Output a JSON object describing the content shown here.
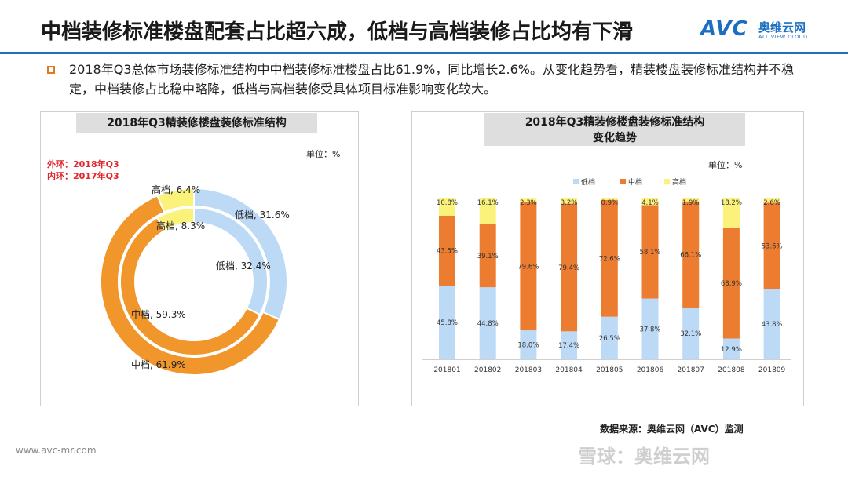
{
  "header": {
    "title": "中档装修标准楼盘配套占比超六成，低档与高档装修占比均有下滑",
    "logo_mark": "AVC",
    "logo_cn": "奥维云网",
    "logo_en": "ALL VIEW CLOUD"
  },
  "description": "2018年Q3总体市场装修标准结构中中档装修标准楼盘占比61.9%，同比增长2.6%。从变化趋势看，精装楼盘装修标准结构并不稳定，中档装修占比稳中略降，低档与高档装修受具体项目标准影响变化较大。",
  "colors": {
    "low": "#bcd9f5",
    "mid": "#f0962a",
    "high": "#fbf27c",
    "bar_mid": "#ec7c30",
    "accent": "#1f6fbf"
  },
  "chart_data": [
    {
      "type": "pie",
      "title": "2018年Q3精装修楼盘装修标准结构",
      "unit": "单位：%",
      "ring_note_outer": "外环：2018年Q3",
      "ring_note_inner": "内环：2017年Q3",
      "outer": [
        {
          "name": "低档",
          "value": 31.6,
          "label": "低档, 31.6%"
        },
        {
          "name": "中档",
          "value": 61.9,
          "label": "中档, 61.9%"
        },
        {
          "name": "高档",
          "value": 6.4,
          "label": "高档, 6.4%"
        }
      ],
      "inner": [
        {
          "name": "低档",
          "value": 32.4,
          "label": "低档, 32.4%"
        },
        {
          "name": "中档",
          "value": 59.3,
          "label": "中档, 59.3%"
        },
        {
          "name": "高档",
          "value": 8.3,
          "label": "高档, 8.3%"
        }
      ]
    },
    {
      "type": "bar",
      "stacked": true,
      "title_line1": "2018年Q3精装修楼盘装修标准结构",
      "title_line2": "变化趋势",
      "unit": "单位：%",
      "legend_position": "top",
      "categories": [
        "201801",
        "201802",
        "201803",
        "201804",
        "201805",
        "201806",
        "201807",
        "201808",
        "201809"
      ],
      "series": [
        {
          "name": "低档",
          "values": [
            45.8,
            44.8,
            18.0,
            17.4,
            26.5,
            37.8,
            32.1,
            12.9,
            43.8
          ],
          "labels": [
            "45.8%",
            "44.8%",
            "18.0%",
            "17.4%",
            "26.5%",
            "37.8%",
            "32.1%",
            "12.9%",
            "43.8%"
          ]
        },
        {
          "name": "中档",
          "values": [
            43.5,
            39.1,
            79.6,
            79.4,
            72.6,
            58.1,
            66.1,
            68.9,
            53.6
          ],
          "labels": [
            "43.5%",
            "39.1%",
            "79.6%",
            "79.4%",
            "72.6%",
            "58.1%",
            "66.1%",
            "68.9%",
            "53.6%"
          ]
        },
        {
          "name": "高档",
          "values": [
            10.8,
            16.1,
            2.3,
            3.2,
            0.9,
            4.1,
            1.9,
            18.2,
            2.6
          ],
          "labels": [
            "10.8%",
            "16.1%",
            "2.3%",
            "3.2%",
            "0.9%",
            "4.1%",
            "1.9%",
            "18.2%",
            "2.6%"
          ]
        }
      ],
      "ylim": [
        0,
        100
      ]
    }
  ],
  "source": "数据来源：奥维云网（AVC）监测",
  "footer_url": "www.avc-mr.com",
  "footer_xq": "雪球：奥维云网"
}
